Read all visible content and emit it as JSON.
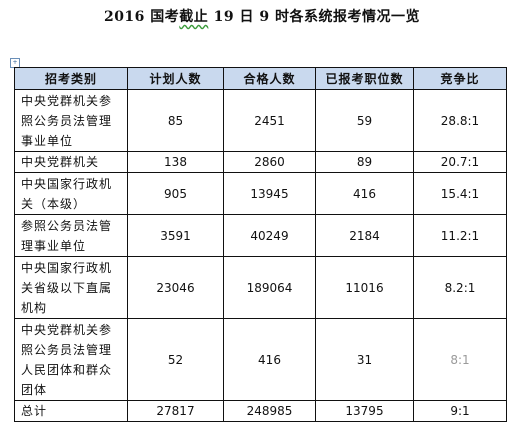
{
  "title": {
    "prefix": "2016 国考",
    "marked": "截止",
    "suffix": " 19 日 9 时各系统报考情况一览"
  },
  "anchor_glyph": "+",
  "table": {
    "headers": [
      "招考类别",
      "计划人数",
      "合格人数",
      "已报考职位数",
      "竞争比"
    ],
    "rows": [
      {
        "category": "中央党群机关参照公务员法管理事业单位",
        "planned": "85",
        "qualified": "2451",
        "positions": "59",
        "ratio": "28.8:1"
      },
      {
        "category": "中央党群机关",
        "planned": "138",
        "qualified": "2860",
        "positions": "89",
        "ratio": "20.7:1"
      },
      {
        "category": "中央国家行政机关（本级）",
        "planned": "905",
        "qualified": "13945",
        "positions": "416",
        "ratio": "15.4:1"
      },
      {
        "category": "参照公务员法管理事业单位",
        "planned": "3591",
        "qualified": "40249",
        "positions": "2184",
        "ratio": "11.2:1"
      },
      {
        "category": "中央国家行政机关省级以下直属机构",
        "planned": "23046",
        "qualified": "189064",
        "positions": "11016",
        "ratio": "8.2:1"
      },
      {
        "category": "中央党群机关参照公务员法管理人民团体和群众团体",
        "planned": "52",
        "qualified": "416",
        "positions": "31",
        "ratio": "8:1"
      },
      {
        "category": "总计",
        "planned": "27817",
        "qualified": "248985",
        "positions": "13795",
        "ratio": "9:1"
      }
    ]
  }
}
